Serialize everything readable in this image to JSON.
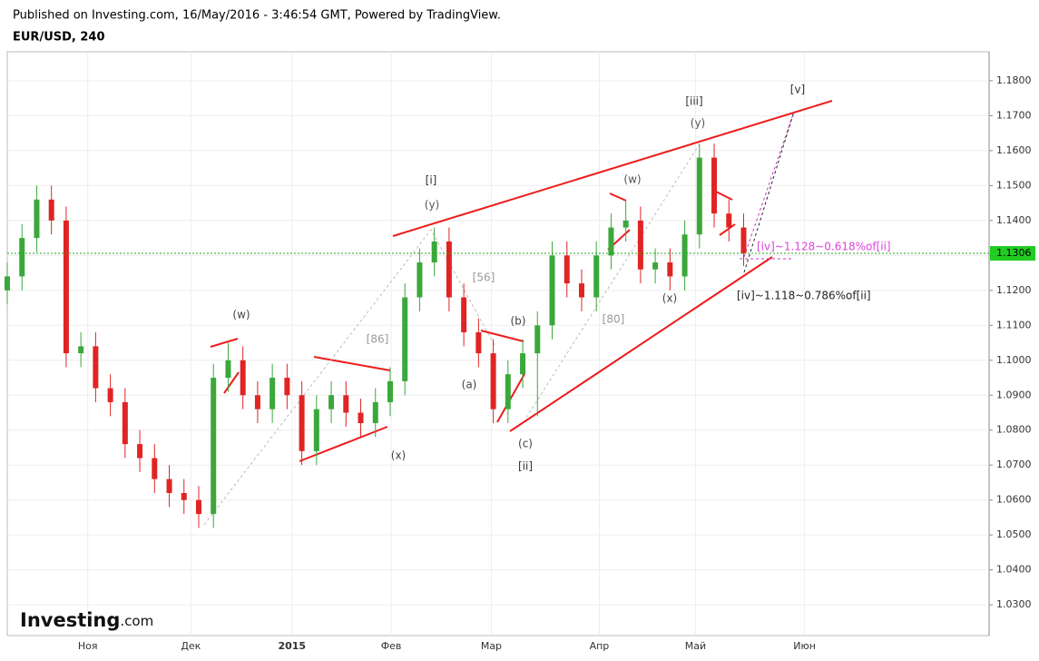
{
  "header": {
    "published": "Published on Investing.com, 16/May/2016 - 3:46:54 GMT, Powered by TradingView.",
    "symbol": "EUR/USD, 240"
  },
  "logo": {
    "brand": "Investing",
    "suffix": ".com"
  },
  "chart_data": {
    "type": "candlestick",
    "x": [
      0,
      1.5,
      3,
      4.5,
      6,
      7.5,
      9,
      10.5,
      12,
      13.5,
      15,
      16.5,
      18,
      19.5,
      21,
      22.5,
      24,
      25.5,
      27,
      28.5,
      30,
      31.5,
      33,
      34.5,
      36,
      37.5,
      39,
      40.5,
      42,
      43.5,
      45,
      46.5,
      48,
      49.5,
      51,
      52.5,
      54,
      55.5,
      57,
      58.5,
      60,
      61.5,
      63,
      64.5,
      66,
      67.5,
      69,
      70.5,
      72,
      73.5,
      75
    ],
    "open": [
      1.12,
      1.124,
      1.135,
      1.146,
      1.14,
      1.102,
      1.104,
      1.092,
      1.088,
      1.076,
      1.072,
      1.066,
      1.062,
      1.06,
      1.056,
      1.095,
      1.1,
      1.09,
      1.086,
      1.095,
      1.09,
      1.074,
      1.086,
      1.09,
      1.085,
      1.082,
      1.088,
      1.094,
      1.118,
      1.128,
      1.134,
      1.118,
      1.108,
      1.102,
      1.086,
      1.096,
      1.102,
      1.11,
      1.13,
      1.122,
      1.118,
      1.13,
      1.138,
      1.14,
      1.126,
      1.128,
      1.124,
      1.136,
      1.158,
      1.142,
      1.138
    ],
    "high": [
      1.128,
      1.139,
      1.15,
      1.15,
      1.144,
      1.108,
      1.108,
      1.096,
      1.092,
      1.08,
      1.076,
      1.07,
      1.066,
      1.064,
      1.099,
      1.105,
      1.104,
      1.094,
      1.099,
      1.099,
      1.094,
      1.09,
      1.094,
      1.094,
      1.089,
      1.092,
      1.098,
      1.122,
      1.132,
      1.138,
      1.138,
      1.122,
      1.112,
      1.106,
      1.1,
      1.106,
      1.114,
      1.134,
      1.134,
      1.126,
      1.134,
      1.142,
      1.146,
      1.144,
      1.132,
      1.132,
      1.14,
      1.162,
      1.162,
      1.146,
      1.142
    ],
    "low": [
      1.116,
      1.12,
      1.131,
      1.136,
      1.098,
      1.098,
      1.088,
      1.084,
      1.072,
      1.068,
      1.062,
      1.058,
      1.056,
      1.052,
      1.052,
      1.091,
      1.086,
      1.082,
      1.082,
      1.086,
      1.07,
      1.07,
      1.082,
      1.081,
      1.078,
      1.078,
      1.084,
      1.09,
      1.114,
      1.124,
      1.114,
      1.104,
      1.098,
      1.082,
      1.082,
      1.092,
      1.084,
      1.106,
      1.118,
      1.114,
      1.114,
      1.126,
      1.134,
      1.122,
      1.122,
      1.12,
      1.12,
      1.132,
      1.138,
      1.134,
      1.127
    ],
    "close": [
      1.124,
      1.135,
      1.146,
      1.14,
      1.102,
      1.104,
      1.092,
      1.088,
      1.076,
      1.072,
      1.066,
      1.062,
      1.06,
      1.056,
      1.095,
      1.1,
      1.09,
      1.086,
      1.095,
      1.09,
      1.074,
      1.086,
      1.09,
      1.085,
      1.082,
      1.088,
      1.094,
      1.118,
      1.128,
      1.134,
      1.118,
      1.108,
      1.102,
      1.086,
      1.096,
      1.102,
      1.11,
      1.13,
      1.122,
      1.118,
      1.13,
      1.138,
      1.14,
      1.126,
      1.128,
      1.124,
      1.136,
      1.158,
      1.142,
      1.138,
      1.1306
    ],
    "up_color": "#3aa83a",
    "down_color": "#e02424",
    "xlim": [
      0,
      100
    ],
    "xticks": [
      {
        "value": 8.2,
        "label": "Ноя"
      },
      {
        "value": 18.7,
        "label": "Дек"
      },
      {
        "value": 29.0,
        "label": "2015"
      },
      {
        "value": 39.1,
        "label": "Фев"
      },
      {
        "value": 49.3,
        "label": "Мар"
      },
      {
        "value": 60.3,
        "label": "Апр"
      },
      {
        "value": 70.1,
        "label": "Май"
      },
      {
        "value": 81.2,
        "label": "Июн"
      }
    ],
    "ylim": [
      1.0212,
      1.1883
    ],
    "yticks": [
      {
        "value": 1.03,
        "label": "1.0300"
      },
      {
        "value": 1.04,
        "label": "1.0400"
      },
      {
        "value": 1.05,
        "label": "1.0500"
      },
      {
        "value": 1.06,
        "label": "1.0600"
      },
      {
        "value": 1.07,
        "label": "1.0700"
      },
      {
        "value": 1.08,
        "label": "1.0800"
      },
      {
        "value": 1.09,
        "label": "1.0900"
      },
      {
        "value": 1.1,
        "label": "1.1000"
      },
      {
        "value": 1.11,
        "label": "1.1100"
      },
      {
        "value": 1.12,
        "label": "1.1200"
      },
      {
        "value": 1.13,
        "label": "1.1300"
      },
      {
        "value": 1.14,
        "label": "1.1400"
      },
      {
        "value": 1.15,
        "label": "1.1500"
      },
      {
        "value": 1.16,
        "label": "1.1600"
      },
      {
        "value": 1.17,
        "label": "1.1700"
      },
      {
        "value": 1.18,
        "label": "1.1800"
      }
    ],
    "grid": true,
    "annotations": [
      "[v]",
      "[iii]",
      "(y)",
      "[i]",
      "(y)",
      "(w)",
      "[iv]~1.128~0.618%of[ii]",
      "[iv]~1.118~0.786%of[ii]",
      "(w)",
      "[86]",
      "[56]",
      "[80]",
      "(b)",
      "(x)",
      "(a)",
      "(c)",
      "[ii]",
      "(x)"
    ]
  }
}
